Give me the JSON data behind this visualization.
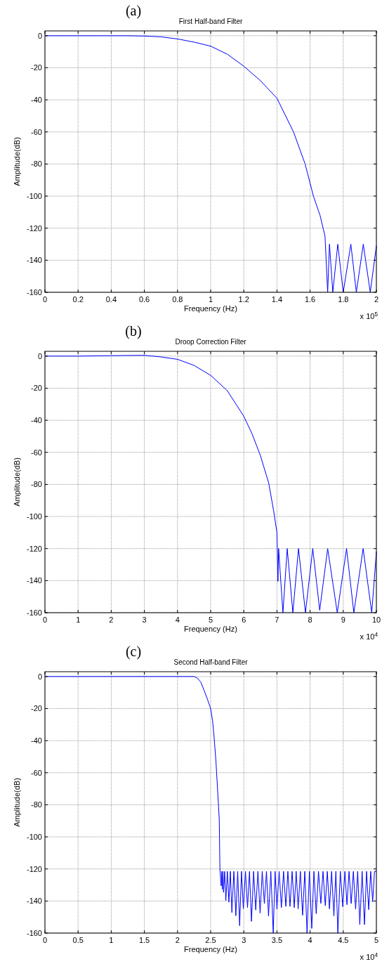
{
  "chart_data": [
    {
      "type": "line",
      "title": "First Half-band Filter",
      "xlabel": "Frequency (Hz)",
      "ylabel": "Amplitude(dB)",
      "annotations": [
        "(a)",
        "x 10$^{5}$"
      ],
      "x": [
        0,
        0.5,
        0.6,
        0.7,
        0.8,
        0.9,
        1.0,
        1.1,
        1.2,
        1.3,
        1.4,
        1.5,
        1.57,
        1.62,
        1.66,
        1.69,
        1.706,
        1.717,
        1.737,
        1.767,
        1.8,
        1.846,
        1.879,
        1.921,
        1.963,
        2.0
      ],
      "series": [
        {
          "color": "#0000ff",
          "values": [
            0,
            0,
            -0.2,
            -0.7,
            -2,
            -4,
            -6.5,
            -11.5,
            -19,
            -28,
            -39,
            -60,
            -80,
            -100,
            -112,
            -125,
            -160,
            -130,
            -160,
            -130,
            -160,
            -130,
            -160,
            -130,
            -160,
            -131
          ]
        }
      ],
      "xlim": [
        0,
        2
      ],
      "xticks": [
        0,
        0.2,
        0.4,
        0.6,
        0.8,
        1,
        1.2,
        1.4,
        1.6,
        1.8,
        2
      ],
      "ylim": [
        -160,
        3
      ],
      "yticks": [
        0,
        -20,
        -40,
        -60,
        -80,
        -100,
        -120,
        -140,
        -160
      ],
      "grid": true
    },
    {
      "type": "line",
      "title": "Droop Correction Filter",
      "xlabel": "Frequency (Hz)",
      "ylabel": "Amplitude(dB)",
      "annotations": [
        "(b)",
        "x 10$^{4}$"
      ],
      "x": [
        0,
        1,
        2,
        3,
        3.5,
        4,
        4.5,
        5,
        5.5,
        6,
        6.25,
        6.5,
        6.75,
        6.9,
        7.0,
        7.03,
        7.05,
        7.18,
        7.31,
        7.48,
        7.65,
        7.86,
        8.08,
        8.29,
        8.53,
        8.82,
        9.1,
        9.32,
        9.6,
        9.86,
        10
      ],
      "series": [
        {
          "color": "#0000ff",
          "values": [
            0,
            0,
            0.3,
            0.5,
            -0.5,
            -2,
            -5.8,
            -12,
            -21.5,
            -37.5,
            -48.5,
            -62,
            -79,
            -96.5,
            -110,
            -140.5,
            -120,
            -160,
            -120,
            -160,
            -120,
            -160,
            -120,
            -158.5,
            -120,
            -160,
            -120,
            -160,
            -120,
            -160,
            -122
          ]
        }
      ],
      "xlim": [
        0,
        10
      ],
      "xticks": [
        0,
        1,
        2,
        3,
        4,
        5,
        6,
        7,
        8,
        9,
        10
      ],
      "ylim": [
        -160,
        3
      ],
      "yticks": [
        0,
        -20,
        -40,
        -60,
        -80,
        -100,
        -120,
        -140,
        -160
      ],
      "grid": true
    },
    {
      "type": "line",
      "title": "Second Half-band Filter",
      "xlabel": "Frequency (Hz)",
      "ylabel": "Amplitude(dB)",
      "annotations": [
        "(c)",
        "x 10$^{4}$"
      ],
      "x": [
        0,
        2.25,
        2.3,
        2.35,
        2.4,
        2.45,
        2.5,
        2.53,
        2.55,
        2.58,
        2.6,
        2.62,
        2.63,
        2.64,
        2.641,
        2.658,
        2.667,
        2.676,
        2.685,
        2.694,
        2.711,
        2.729,
        2.752,
        2.775,
        2.797,
        2.82,
        2.85,
        2.88,
        2.908,
        2.937,
        2.965,
        2.993,
        3.025,
        3.056,
        3.086,
        3.116,
        3.148,
        3.18,
        3.213,
        3.246,
        3.278,
        3.31,
        3.342,
        3.373,
        3.408,
        3.444,
        3.472,
        3.5,
        3.533,
        3.567,
        3.6,
        3.634,
        3.665,
        3.697,
        3.729,
        3.761,
        3.79,
        3.82,
        3.853,
        3.887,
        3.92,
        3.954,
        3.99,
        4.025,
        4.058,
        4.092,
        4.127,
        4.162,
        4.195,
        4.229,
        4.26,
        4.292,
        4.325,
        4.359,
        4.389,
        4.419,
        4.456,
        4.493,
        4.525,
        4.556,
        4.588,
        4.62,
        4.653,
        4.687,
        4.718,
        4.75,
        4.785,
        4.82,
        4.852,
        4.884,
        4.914,
        4.944,
        4.972,
        5.0
      ],
      "series": [
        {
          "color": "#0000ff",
          "values": [
            0,
            0,
            -1,
            -3.4,
            -8.5,
            -14,
            -20,
            -28,
            -37,
            -53,
            -67.6,
            -82,
            -89.6,
            -121,
            -121,
            -130.5,
            -121.5,
            -132.7,
            -121.5,
            -134.6,
            -121.5,
            -139.7,
            -121.5,
            -140.7,
            -121.5,
            -147.2,
            -121.5,
            -149.2,
            -121.5,
            -155.4,
            -121.5,
            -144.8,
            -121.5,
            -144.1,
            -121.5,
            -152.7,
            -121.5,
            -145.6,
            -121.5,
            -147.5,
            -121.5,
            -141.6,
            -121.5,
            -149.4,
            -121.5,
            -160,
            -121.5,
            -145,
            -121.5,
            -144.1,
            -121.5,
            -143.4,
            -121.5,
            -143.4,
            -121.5,
            -144.1,
            -121.5,
            -144.9,
            -121.5,
            -148.9,
            -121.5,
            -160,
            -121.5,
            -157.1,
            -121.5,
            -147.9,
            -121.5,
            -141.5,
            -121.5,
            -142.9,
            -121.5,
            -144.9,
            -121.5,
            -149.3,
            -121.5,
            -160,
            -121.5,
            -143.6,
            -121.5,
            -142.3,
            -121.5,
            -141.6,
            -121.5,
            -145.1,
            -121.5,
            -154.7,
            -121.5,
            -154.7,
            -121.5,
            -145.4,
            -121.5,
            -140.5,
            -121.5,
            -121.5
          ]
        }
      ],
      "xlim": [
        0,
        5
      ],
      "xticks": [
        0,
        0.5,
        1,
        1.5,
        2,
        2.5,
        3,
        3.5,
        4,
        4.5,
        5
      ],
      "ylim": [
        -160,
        3
      ],
      "yticks": [
        0,
        -20,
        -40,
        -60,
        -80,
        -100,
        -120,
        -140,
        -160
      ],
      "grid": true
    }
  ]
}
